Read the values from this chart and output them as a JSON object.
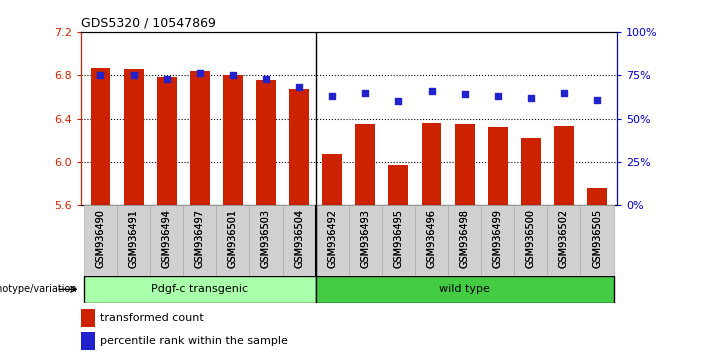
{
  "title": "GDS5320 / 10547869",
  "samples": [
    "GSM936490",
    "GSM936491",
    "GSM936494",
    "GSM936497",
    "GSM936501",
    "GSM936503",
    "GSM936504",
    "GSM936492",
    "GSM936493",
    "GSM936495",
    "GSM936496",
    "GSM936498",
    "GSM936499",
    "GSM936500",
    "GSM936502",
    "GSM936505"
  ],
  "bar_values": [
    6.87,
    6.86,
    6.78,
    6.84,
    6.8,
    6.76,
    6.67,
    6.07,
    6.35,
    5.97,
    6.36,
    6.35,
    6.32,
    6.22,
    6.33,
    5.76
  ],
  "percentile_values": [
    75,
    75,
    73,
    76,
    75,
    73,
    68,
    63,
    65,
    60,
    66,
    64,
    63,
    62,
    65,
    61
  ],
  "ylim_left": [
    5.6,
    7.2
  ],
  "ylim_right": [
    0,
    100
  ],
  "yticks_left": [
    5.6,
    6.0,
    6.4,
    6.8,
    7.2
  ],
  "yticks_right": [
    0,
    25,
    50,
    75,
    100
  ],
  "bar_color": "#cc2200",
  "percentile_color": "#2222cc",
  "grid_color": "black",
  "background_color": "#ffffff",
  "transgenic_label": "Pdgf-c transgenic",
  "wildtype_label": "wild type",
  "transgenic_color": "#aaffaa",
  "wildtype_color": "#44cc44",
  "genotype_label": "genotype/variation",
  "legend_bar": "transformed count",
  "legend_pct": "percentile rank within the sample",
  "n_transgenic": 7,
  "n_wildtype": 9,
  "tick_label_color_left": "#cc2200",
  "tick_label_color_right": "#0000cc"
}
